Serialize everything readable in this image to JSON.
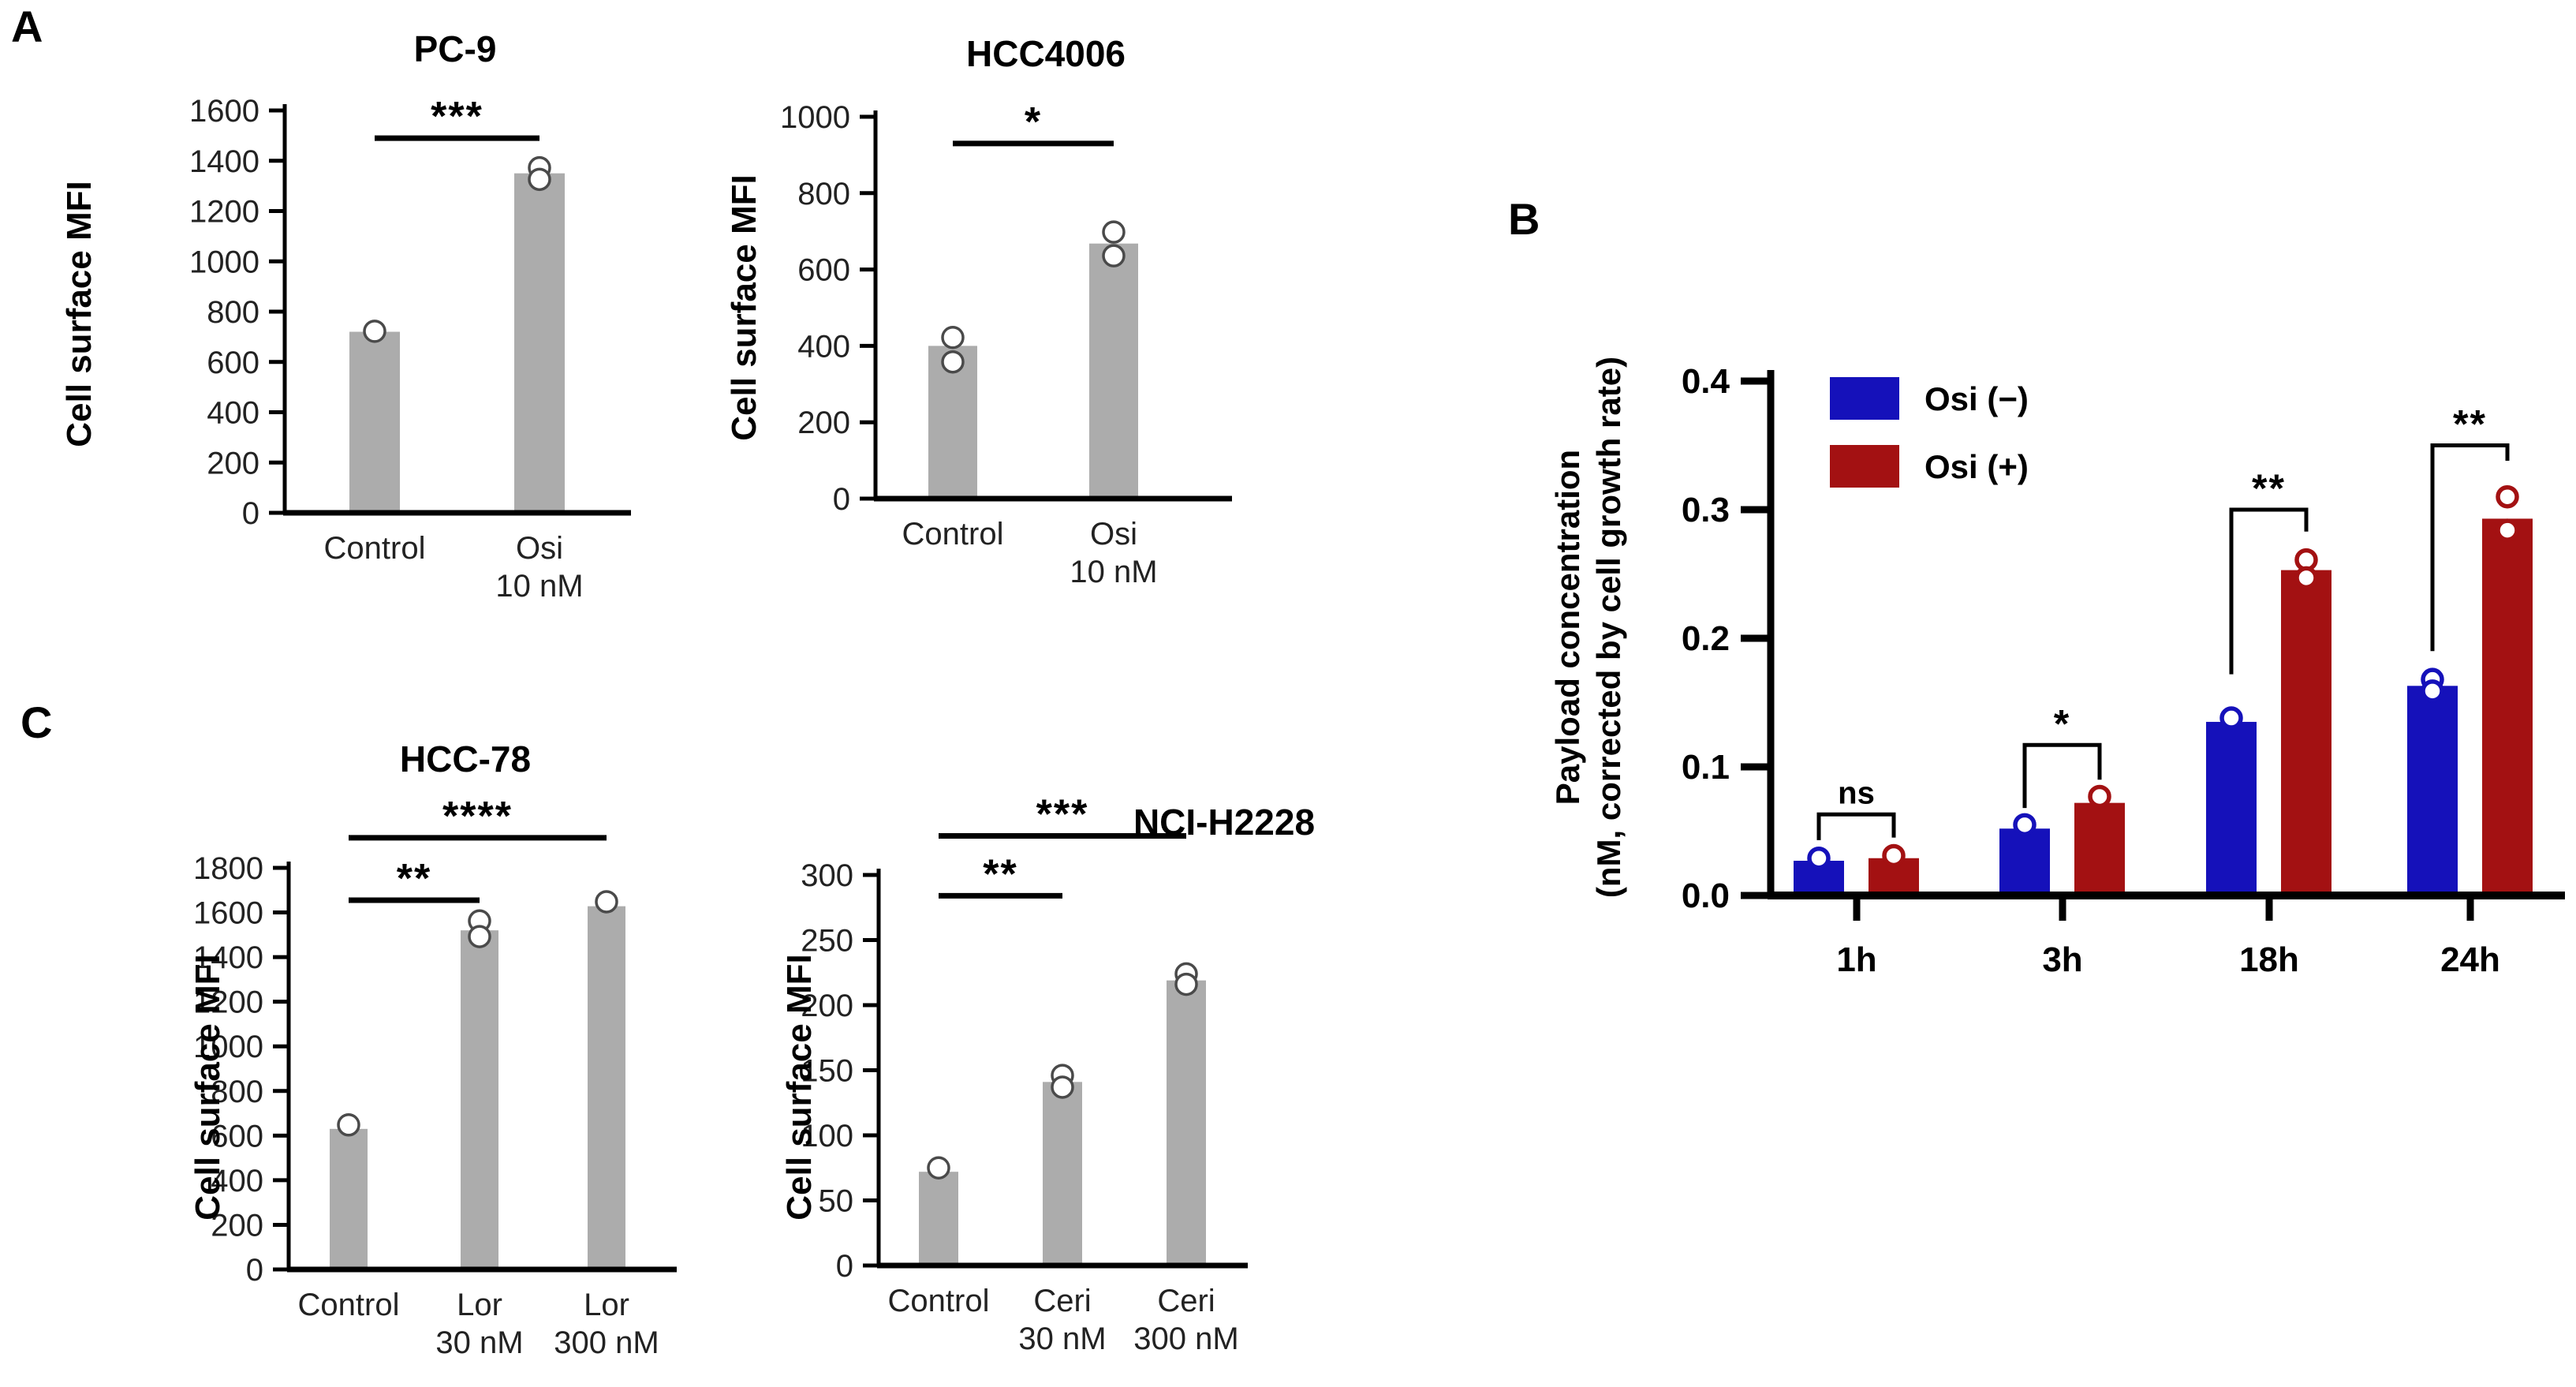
{
  "panels": [
    {
      "label": "A"
    },
    {
      "label": "B"
    },
    {
      "label": "C"
    }
  ],
  "colors": {
    "background": "#ffffff",
    "bar_gray": "#ACACAC",
    "osi_neg_blue": "#1511BA",
    "osi_pos_red": "#A31112",
    "axis_black": "#000000",
    "point_stroke_gray": "#4A4A4A",
    "text_dark": "#222222"
  },
  "chart_data": [
    {
      "id": "pc9",
      "panel": "A",
      "type": "bar",
      "title": "PC-9",
      "ylabel": "Cell surface MFI",
      "ylim": [
        0,
        1600
      ],
      "ytick_step": 200,
      "categories": [
        [
          "Control"
        ],
        [
          "Osi",
          "10 nM"
        ]
      ],
      "values": [
        720,
        1350
      ],
      "points": [
        [
          722
        ],
        [
          1372,
          1326
        ]
      ],
      "significance": [
        {
          "from": 0,
          "to": 1,
          "stars": "***",
          "line_value": 1490
        }
      ]
    },
    {
      "id": "hcc4006",
      "panel": "A",
      "type": "bar",
      "title": "HCC4006",
      "ylabel": "Cell surface MFI",
      "ylim": [
        0,
        1000
      ],
      "ytick_step": 200,
      "categories": [
        [
          "Control"
        ],
        [
          "Osi",
          "10 nM"
        ]
      ],
      "values": [
        400,
        668
      ],
      "points": [
        [
          422,
          358
        ],
        [
          698,
          636
        ]
      ],
      "significance": [
        {
          "from": 0,
          "to": 1,
          "stars": "*",
          "line_value": 930
        }
      ]
    },
    {
      "id": "hcc78",
      "panel": "C",
      "type": "bar",
      "title": "HCC-78",
      "ylabel": "Cell surface MFI",
      "ylim": [
        0,
        1800
      ],
      "ytick_step": 200,
      "categories": [
        [
          "Control"
        ],
        [
          "Lor",
          "30 nM"
        ],
        [
          "Lor",
          "300 nM"
        ]
      ],
      "values": [
        630,
        1520,
        1628
      ],
      "points": [
        [
          648
        ],
        [
          1562,
          1492
        ],
        [
          1648
        ]
      ],
      "significance": [
        {
          "from": 0,
          "to": 1,
          "stars": "**",
          "line_value": 1655
        },
        {
          "from": 0,
          "to": 2,
          "stars": "****",
          "line_value": 1935
        }
      ]
    },
    {
      "id": "ncih2228",
      "panel": "C",
      "type": "bar",
      "title": "NCI-H2228",
      "ylabel": "Cell surface MFI",
      "ylim": [
        0,
        300
      ],
      "ytick_step": 50,
      "categories": [
        [
          "Control"
        ],
        [
          "Ceri",
          "30 nM"
        ],
        [
          "Ceri",
          "300 nM"
        ]
      ],
      "values": [
        72,
        141,
        219
      ],
      "points": [
        [
          75
        ],
        [
          146,
          137
        ],
        [
          224,
          216
        ]
      ],
      "significance": [
        {
          "from": 0,
          "to": 1,
          "stars": "**",
          "line_value": 284
        },
        {
          "from": 0,
          "to": 2,
          "stars": "***",
          "line_value": 330
        }
      ]
    },
    {
      "id": "payload",
      "panel": "B",
      "type": "grouped_bar",
      "title": "",
      "ylabel_lines": [
        "Payload concentration",
        "(nM, corrected by cell growth rate)"
      ],
      "ylim": [
        0,
        0.4
      ],
      "ytick_step": 0.1,
      "ytick_decimals": 1,
      "categories": [
        "1h",
        "3h",
        "18h",
        "24h"
      ],
      "legend_position": "top-left-inside",
      "series": [
        {
          "name": "Osi (−)",
          "color": "#1511BA",
          "values": [
            0.027,
            0.052,
            0.135,
            0.163
          ],
          "points": [
            [
              0.029
            ],
            [
              0.055
            ],
            [
              0.138
            ],
            [
              0.168,
              0.159
            ]
          ]
        },
        {
          "name": "Osi (+)",
          "color": "#A31112",
          "values": [
            0.029,
            0.072,
            0.253,
            0.293
          ],
          "points": [
            [
              0.031
            ],
            [
              0.077
            ],
            [
              0.261,
              0.247
            ],
            [
              0.31,
              0.284
            ]
          ]
        }
      ],
      "significance": [
        {
          "group": 0,
          "label": "ns",
          "line_value": 0.063,
          "left_drop_to": 0.043,
          "right_drop_to": 0.045
        },
        {
          "group": 1,
          "label": "*",
          "line_value": 0.117,
          "left_drop_to": 0.068,
          "right_drop_to": 0.09
        },
        {
          "group": 2,
          "label": "**",
          "line_value": 0.3,
          "left_drop_to": 0.172,
          "right_drop_to": 0.283
        },
        {
          "group": 3,
          "label": "**",
          "line_value": 0.35,
          "left_drop_to": 0.19,
          "right_drop_to": 0.338
        }
      ]
    }
  ]
}
